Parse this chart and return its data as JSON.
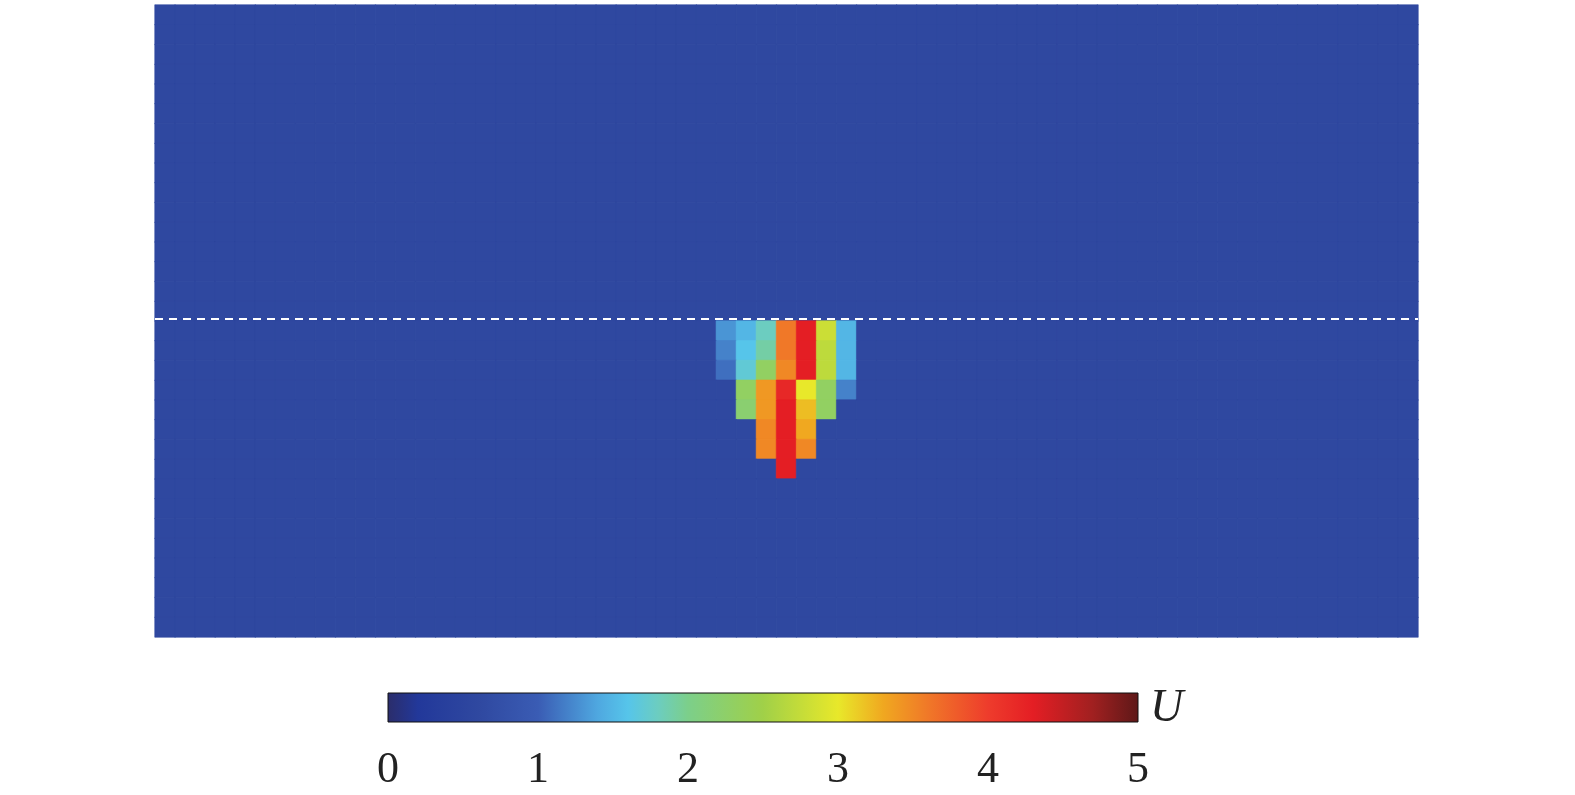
{
  "chart_data": {
    "type": "heatmap",
    "clabel": "U",
    "clim": [
      0,
      5
    ],
    "cticks": [
      0,
      1,
      2,
      3,
      4,
      5
    ],
    "categories": [
      null,
      null,
      null,
      null,
      null,
      null,
      null,
      null,
      null,
      null,
      null,
      null,
      null,
      null,
      null,
      null,
      null,
      null,
      null,
      null,
      null,
      null,
      null,
      null,
      null,
      null,
      null,
      null,
      null,
      null,
      null,
      null,
      null,
      null,
      null,
      null,
      null,
      null,
      null,
      null,
      null,
      null,
      null,
      null,
      null,
      null,
      null,
      null,
      null,
      null,
      null,
      null,
      null,
      null,
      null,
      null,
      null,
      null,
      null,
      null,
      null,
      null,
      null
    ],
    "y_categories": [
      null,
      null,
      null,
      null,
      null,
      null,
      null,
      null,
      null,
      null,
      null,
      null,
      null,
      null,
      null,
      null,
      null,
      null,
      null,
      null,
      null,
      null,
      null,
      null,
      null,
      null,
      null,
      null,
      null,
      null,
      null,
      null
    ],
    "cells": [
      [
        0.6,
        0.6,
        0.6,
        0.6,
        0.6,
        0.6,
        0.6,
        0.6,
        0.6,
        0.6,
        0.6,
        0.6,
        0.6,
        0.6,
        0.6,
        0.6,
        0.6,
        0.6,
        0.6,
        0.6,
        0.6,
        0.6,
        0.6,
        0.6,
        0.6,
        0.6,
        0.6,
        0.6,
        0.6,
        0.6,
        0.6,
        0.6,
        0.6,
        0.6,
        0.6,
        0.6,
        0.6,
        0.6,
        0.6,
        0.6,
        0.6,
        0.6,
        0.6,
        0.6,
        0.6,
        0.6,
        0.6,
        0.6,
        0.6,
        0.6,
        0.6,
        0.6,
        0.6,
        0.6,
        0.6,
        0.6,
        0.6,
        0.6,
        0.6,
        0.6,
        0.6,
        0.6,
        0.6
      ],
      [
        0.6,
        0.6,
        0.6,
        0.6,
        0.6,
        0.6,
        0.6,
        0.6,
        0.6,
        0.6,
        0.6,
        0.6,
        0.6,
        0.6,
        0.6,
        0.6,
        0.6,
        0.6,
        0.6,
        0.6,
        0.6,
        0.6,
        0.6,
        0.6,
        0.6,
        0.6,
        0.6,
        0.6,
        0.6,
        0.6,
        0.6,
        0.6,
        0.6,
        0.6,
        0.6,
        0.6,
        0.6,
        0.6,
        0.6,
        0.6,
        0.6,
        0.6,
        0.6,
        0.6,
        0.6,
        0.6,
        0.6,
        0.6,
        0.6,
        0.6,
        0.6,
        0.6,
        0.6,
        0.6,
        0.6,
        0.6,
        0.6,
        0.6,
        0.6,
        0.6,
        0.6,
        0.6,
        0.6
      ],
      [
        0.6,
        0.6,
        0.6,
        0.6,
        0.6,
        0.6,
        0.6,
        0.6,
        0.6,
        0.6,
        0.6,
        0.6,
        0.6,
        0.6,
        0.6,
        0.6,
        0.6,
        0.6,
        0.6,
        0.6,
        0.6,
        0.6,
        0.6,
        0.6,
        0.6,
        0.6,
        0.6,
        0.6,
        0.6,
        0.6,
        0.6,
        0.6,
        0.6,
        0.6,
        0.6,
        0.6,
        0.6,
        0.6,
        0.6,
        0.6,
        0.6,
        0.6,
        0.6,
        0.6,
        0.6,
        0.6,
        0.6,
        0.6,
        0.6,
        0.6,
        0.6,
        0.6,
        0.6,
        0.6,
        0.6,
        0.6,
        0.6,
        0.6,
        0.6,
        0.6,
        0.6,
        0.6,
        0.6
      ],
      [
        0.6,
        0.6,
        0.6,
        0.6,
        0.6,
        0.6,
        0.6,
        0.6,
        0.6,
        0.6,
        0.6,
        0.6,
        0.6,
        0.6,
        0.6,
        0.6,
        0.6,
        0.6,
        0.6,
        0.6,
        0.6,
        0.6,
        0.6,
        0.6,
        0.6,
        0.6,
        0.6,
        0.6,
        0.6,
        0.6,
        0.6,
        0.6,
        0.6,
        0.6,
        0.6,
        0.6,
        0.6,
        0.6,
        0.6,
        0.6,
        0.6,
        0.6,
        0.6,
        0.6,
        0.6,
        0.6,
        0.6,
        0.6,
        0.6,
        0.6,
        0.6,
        0.6,
        0.6,
        0.6,
        0.6,
        0.6,
        0.6,
        0.6,
        0.6,
        0.6,
        0.6,
        0.6,
        0.6
      ],
      [
        0.6,
        0.6,
        0.6,
        0.6,
        0.6,
        0.6,
        0.6,
        0.6,
        0.6,
        0.6,
        0.6,
        0.6,
        0.6,
        0.6,
        0.6,
        0.6,
        0.6,
        0.6,
        0.6,
        0.6,
        0.6,
        0.6,
        0.6,
        0.6,
        0.6,
        0.6,
        0.6,
        0.6,
        0.6,
        0.6,
        0.6,
        0.6,
        0.6,
        0.6,
        0.6,
        0.6,
        0.6,
        0.6,
        0.6,
        0.6,
        0.6,
        0.6,
        0.6,
        0.6,
        0.6,
        0.6,
        0.6,
        0.6,
        0.6,
        0.6,
        0.6,
        0.6,
        0.6,
        0.6,
        0.6,
        0.6,
        0.6,
        0.6,
        0.6,
        0.6,
        0.6,
        0.6,
        0.6
      ],
      [
        0.6,
        0.6,
        0.6,
        0.6,
        0.6,
        0.6,
        0.6,
        0.6,
        0.6,
        0.6,
        0.6,
        0.6,
        0.6,
        0.6,
        0.6,
        0.6,
        0.6,
        0.6,
        0.6,
        0.6,
        0.6,
        0.6,
        0.6,
        0.6,
        0.6,
        0.6,
        0.6,
        0.6,
        0.6,
        0.6,
        0.6,
        0.6,
        0.6,
        0.6,
        0.6,
        0.6,
        0.6,
        0.6,
        0.6,
        0.6,
        0.6,
        0.6,
        0.6,
        0.6,
        0.6,
        0.6,
        0.6,
        0.6,
        0.6,
        0.6,
        0.6,
        0.6,
        0.6,
        0.6,
        0.6,
        0.6,
        0.6,
        0.6,
        0.6,
        0.6,
        0.6,
        0.6,
        0.6
      ],
      [
        0.6,
        0.6,
        0.6,
        0.6,
        0.6,
        0.6,
        0.6,
        0.6,
        0.6,
        0.6,
        0.6,
        0.6,
        0.6,
        0.6,
        0.6,
        0.6,
        0.6,
        0.6,
        0.6,
        0.6,
        0.6,
        0.6,
        0.6,
        0.6,
        0.6,
        0.6,
        0.6,
        0.6,
        0.6,
        0.6,
        0.6,
        0.6,
        0.6,
        0.6,
        0.6,
        0.6,
        0.6,
        0.6,
        0.6,
        0.6,
        0.6,
        0.6,
        0.6,
        0.6,
        0.6,
        0.6,
        0.6,
        0.6,
        0.6,
        0.6,
        0.6,
        0.6,
        0.6,
        0.6,
        0.6,
        0.6,
        0.6,
        0.6,
        0.6,
        0.6,
        0.6,
        0.6,
        0.6
      ],
      [
        0.6,
        0.6,
        0.6,
        0.6,
        0.6,
        0.6,
        0.6,
        0.6,
        0.6,
        0.6,
        0.6,
        0.6,
        0.6,
        0.6,
        0.6,
        0.6,
        0.6,
        0.6,
        0.6,
        0.6,
        0.6,
        0.6,
        0.6,
        0.6,
        0.6,
        0.6,
        0.6,
        0.6,
        0.6,
        0.6,
        0.6,
        0.6,
        0.6,
        0.6,
        0.6,
        0.6,
        0.6,
        0.6,
        0.6,
        0.6,
        0.6,
        0.6,
        0.6,
        0.6,
        0.6,
        0.6,
        0.6,
        0.6,
        0.6,
        0.6,
        0.6,
        0.6,
        0.6,
        0.6,
        0.6,
        0.6,
        0.6,
        0.6,
        0.6,
        0.6,
        0.6,
        0.6,
        0.6
      ],
      [
        0.6,
        0.6,
        0.6,
        0.6,
        0.6,
        0.6,
        0.6,
        0.6,
        0.6,
        0.6,
        0.6,
        0.6,
        0.6,
        0.6,
        0.6,
        0.6,
        0.6,
        0.6,
        0.6,
        0.6,
        0.6,
        0.6,
        0.6,
        0.6,
        0.6,
        0.6,
        0.6,
        0.6,
        0.6,
        0.6,
        0.6,
        0.6,
        0.6,
        0.6,
        0.6,
        0.6,
        0.6,
        0.6,
        0.6,
        0.6,
        0.6,
        0.6,
        0.6,
        0.6,
        0.6,
        0.6,
        0.6,
        0.6,
        0.6,
        0.6,
        0.6,
        0.6,
        0.6,
        0.6,
        0.6,
        0.6,
        0.6,
        0.6,
        0.6,
        0.6,
        0.6,
        0.6,
        0.6
      ],
      [
        0.6,
        0.6,
        0.6,
        0.6,
        0.6,
        0.6,
        0.6,
        0.6,
        0.6,
        0.6,
        0.6,
        0.6,
        0.6,
        0.6,
        0.6,
        0.6,
        0.6,
        0.6,
        0.6,
        0.6,
        0.6,
        0.6,
        0.6,
        0.6,
        0.6,
        0.6,
        0.6,
        0.6,
        0.6,
        0.6,
        0.6,
        0.6,
        0.6,
        0.6,
        0.6,
        0.6,
        0.6,
        0.6,
        0.6,
        0.6,
        0.6,
        0.6,
        0.6,
        0.6,
        0.6,
        0.6,
        0.6,
        0.6,
        0.6,
        0.6,
        0.6,
        0.6,
        0.6,
        0.6,
        0.6,
        0.6,
        0.6,
        0.6,
        0.6,
        0.6,
        0.6,
        0.6,
        0.6
      ],
      [
        0.6,
        0.6,
        0.6,
        0.6,
        0.6,
        0.6,
        0.6,
        0.6,
        0.6,
        0.6,
        0.6,
        0.6,
        0.6,
        0.6,
        0.6,
        0.6,
        0.6,
        0.6,
        0.6,
        0.6,
        0.6,
        0.6,
        0.6,
        0.6,
        0.6,
        0.6,
        0.6,
        0.6,
        0.6,
        0.6,
        0.6,
        0.6,
        0.6,
        0.6,
        0.6,
        0.6,
        0.6,
        0.6,
        0.6,
        0.6,
        0.6,
        0.6,
        0.6,
        0.6,
        0.6,
        0.6,
        0.6,
        0.6,
        0.6,
        0.6,
        0.6,
        0.6,
        0.6,
        0.6,
        0.6,
        0.6,
        0.6,
        0.6,
        0.6,
        0.6,
        0.6,
        0.6,
        0.6
      ],
      [
        0.6,
        0.6,
        0.6,
        0.6,
        0.6,
        0.6,
        0.6,
        0.6,
        0.6,
        0.6,
        0.6,
        0.6,
        0.6,
        0.6,
        0.6,
        0.6,
        0.6,
        0.6,
        0.6,
        0.6,
        0.6,
        0.6,
        0.6,
        0.6,
        0.6,
        0.6,
        0.6,
        0.6,
        0.6,
        0.6,
        0.6,
        0.6,
        0.6,
        0.6,
        0.6,
        0.6,
        0.6,
        0.6,
        0.6,
        0.6,
        0.6,
        0.6,
        0.6,
        0.6,
        0.6,
        0.6,
        0.6,
        0.6,
        0.6,
        0.6,
        0.6,
        0.6,
        0.6,
        0.6,
        0.6,
        0.6,
        0.6,
        0.6,
        0.6,
        0.6,
        0.6,
        0.6,
        0.6
      ],
      [
        0.6,
        0.6,
        0.6,
        0.6,
        0.6,
        0.6,
        0.6,
        0.6,
        0.6,
        0.6,
        0.6,
        0.6,
        0.6,
        0.6,
        0.6,
        0.6,
        0.6,
        0.6,
        0.6,
        0.6,
        0.6,
        0.6,
        0.6,
        0.6,
        0.6,
        0.6,
        0.6,
        0.6,
        0.6,
        0.6,
        0.6,
        0.6,
        0.6,
        0.6,
        0.6,
        0.6,
        0.6,
        0.6,
        0.6,
        0.6,
        0.6,
        0.6,
        0.6,
        0.6,
        0.6,
        0.6,
        0.6,
        0.6,
        0.6,
        0.6,
        0.6,
        0.6,
        0.6,
        0.6,
        0.6,
        0.6,
        0.6,
        0.6,
        0.6,
        0.6,
        0.6,
        0.6,
        0.6
      ],
      [
        0.6,
        0.6,
        0.6,
        0.6,
        0.6,
        0.6,
        0.6,
        0.6,
        0.6,
        0.6,
        0.6,
        0.6,
        0.6,
        0.6,
        0.6,
        0.6,
        0.6,
        0.6,
        0.6,
        0.6,
        0.6,
        0.6,
        0.6,
        0.6,
        0.6,
        0.6,
        0.6,
        0.6,
        0.6,
        0.6,
        0.6,
        0.6,
        0.6,
        0.6,
        0.6,
        0.6,
        0.6,
        0.6,
        0.6,
        0.6,
        0.6,
        0.6,
        0.6,
        0.6,
        0.6,
        0.6,
        0.6,
        0.6,
        0.6,
        0.6,
        0.6,
        0.6,
        0.6,
        0.6,
        0.6,
        0.6,
        0.6,
        0.6,
        0.6,
        0.6,
        0.6,
        0.6,
        0.6
      ],
      [
        0.6,
        0.6,
        0.6,
        0.6,
        0.6,
        0.6,
        0.6,
        0.6,
        0.6,
        0.6,
        0.6,
        0.6,
        0.6,
        0.6,
        0.6,
        0.6,
        0.6,
        0.6,
        0.6,
        0.6,
        0.6,
        0.6,
        0.6,
        0.6,
        0.6,
        0.6,
        0.6,
        0.6,
        0.6,
        0.6,
        0.6,
        0.6,
        0.6,
        0.6,
        0.6,
        0.6,
        0.6,
        0.6,
        0.6,
        0.6,
        0.6,
        0.6,
        0.6,
        0.6,
        0.6,
        0.6,
        0.6,
        0.6,
        0.6,
        0.6,
        0.6,
        0.6,
        0.6,
        0.6,
        0.6,
        0.6,
        0.6,
        0.6,
        0.6,
        0.6,
        0.6,
        0.6,
        0.6
      ],
      [
        0.6,
        0.6,
        0.6,
        0.6,
        0.6,
        0.6,
        0.6,
        0.6,
        0.6,
        0.6,
        0.6,
        0.6,
        0.6,
        0.6,
        0.6,
        0.6,
        0.6,
        0.6,
        0.6,
        0.6,
        0.6,
        0.6,
        0.6,
        0.6,
        0.6,
        0.6,
        0.6,
        0.6,
        0.6,
        0.6,
        0.6,
        0.6,
        0.6,
        0.6,
        0.6,
        0.6,
        0.6,
        0.6,
        0.6,
        0.6,
        0.6,
        0.6,
        0.6,
        0.6,
        0.6,
        0.6,
        0.6,
        0.6,
        0.6,
        0.6,
        0.6,
        0.6,
        0.6,
        0.6,
        0.6,
        0.6,
        0.6,
        0.6,
        0.6,
        0.6,
        0.6,
        0.6,
        0.6
      ],
      [
        0.6,
        0.6,
        0.6,
        0.6,
        0.6,
        0.6,
        0.6,
        0.6,
        0.6,
        0.6,
        0.6,
        0.6,
        0.6,
        0.6,
        0.6,
        0.6,
        0.6,
        0.6,
        0.6,
        0.6,
        0.6,
        0.6,
        0.6,
        0.6,
        0.6,
        0.6,
        0.6,
        0.6,
        1.3,
        1.5,
        1.8,
        3.6,
        4.3,
        2.8,
        1.5,
        0.6,
        0.6,
        0.6,
        0.6,
        0.6,
        0.6,
        0.6,
        0.6,
        0.6,
        0.6,
        0.6,
        0.6,
        0.6,
        0.6,
        0.6,
        0.6,
        0.6,
        0.6,
        0.6,
        0.6,
        0.6,
        0.6,
        0.6,
        0.6,
        0.6,
        0.6,
        0.6,
        0.6
      ],
      [
        0.6,
        0.6,
        0.6,
        0.6,
        0.6,
        0.6,
        0.6,
        0.6,
        0.6,
        0.6,
        0.6,
        0.6,
        0.6,
        0.6,
        0.6,
        0.6,
        0.6,
        0.6,
        0.6,
        0.6,
        0.6,
        0.6,
        0.6,
        0.6,
        0.6,
        0.6,
        0.6,
        0.6,
        1.2,
        1.6,
        1.9,
        3.6,
        4.3,
        2.7,
        1.5,
        0.6,
        0.6,
        0.6,
        0.6,
        0.6,
        0.6,
        0.6,
        0.6,
        0.6,
        0.6,
        0.6,
        0.6,
        0.6,
        0.6,
        0.6,
        0.6,
        0.6,
        0.6,
        0.6,
        0.6,
        0.6,
        0.6,
        0.6,
        0.6,
        0.6,
        0.6,
        0.6,
        0.6
      ],
      [
        0.6,
        0.6,
        0.6,
        0.6,
        0.6,
        0.6,
        0.6,
        0.6,
        0.6,
        0.6,
        0.6,
        0.6,
        0.6,
        0.6,
        0.6,
        0.6,
        0.6,
        0.6,
        0.6,
        0.6,
        0.6,
        0.6,
        0.6,
        0.6,
        0.6,
        0.6,
        0.6,
        0.6,
        1.1,
        1.7,
        2.3,
        3.5,
        4.3,
        2.7,
        1.5,
        0.6,
        0.6,
        0.6,
        0.6,
        0.6,
        0.6,
        0.6,
        0.6,
        0.6,
        0.6,
        0.6,
        0.6,
        0.6,
        0.6,
        0.6,
        0.6,
        0.6,
        0.6,
        0.6,
        0.6,
        0.6,
        0.6,
        0.6,
        0.6,
        0.6,
        0.6,
        0.6,
        0.6
      ],
      [
        0.6,
        0.6,
        0.6,
        0.6,
        0.6,
        0.6,
        0.6,
        0.6,
        0.6,
        0.6,
        0.6,
        0.6,
        0.6,
        0.6,
        0.6,
        0.6,
        0.6,
        0.6,
        0.6,
        0.6,
        0.6,
        0.6,
        0.6,
        0.6,
        0.6,
        0.6,
        0.6,
        0.6,
        0.6,
        2.3,
        3.4,
        4.2,
        3.0,
        2.3,
        1.2,
        0.6,
        0.6,
        0.6,
        0.6,
        0.6,
        0.6,
        0.6,
        0.6,
        0.6,
        0.6,
        0.6,
        0.6,
        0.6,
        0.6,
        0.6,
        0.6,
        0.6,
        0.6,
        0.6,
        0.6,
        0.6,
        0.6,
        0.6,
        0.6,
        0.6,
        0.6,
        0.6,
        0.6
      ],
      [
        0.6,
        0.6,
        0.6,
        0.6,
        0.6,
        0.6,
        0.6,
        0.6,
        0.6,
        0.6,
        0.6,
        0.6,
        0.6,
        0.6,
        0.6,
        0.6,
        0.6,
        0.6,
        0.6,
        0.6,
        0.6,
        0.6,
        0.6,
        0.6,
        0.6,
        0.6,
        0.6,
        0.6,
        0.6,
        2.2,
        3.4,
        4.3,
        3.2,
        2.3,
        0.6,
        0.6,
        0.6,
        0.6,
        0.6,
        0.6,
        0.6,
        0.6,
        0.6,
        0.6,
        0.6,
        0.6,
        0.6,
        0.6,
        0.6,
        0.6,
        0.6,
        0.6,
        0.6,
        0.6,
        0.6,
        0.6,
        0.6,
        0.6,
        0.6,
        0.6,
        0.6,
        0.6,
        0.6
      ],
      [
        0.6,
        0.6,
        0.6,
        0.6,
        0.6,
        0.6,
        0.6,
        0.6,
        0.6,
        0.6,
        0.6,
        0.6,
        0.6,
        0.6,
        0.6,
        0.6,
        0.6,
        0.6,
        0.6,
        0.6,
        0.6,
        0.6,
        0.6,
        0.6,
        0.6,
        0.6,
        0.6,
        0.6,
        0.6,
        0.6,
        3.5,
        4.3,
        3.3,
        0.6,
        0.6,
        0.6,
        0.6,
        0.6,
        0.6,
        0.6,
        0.6,
        0.6,
        0.6,
        0.6,
        0.6,
        0.6,
        0.6,
        0.6,
        0.6,
        0.6,
        0.6,
        0.6,
        0.6,
        0.6,
        0.6,
        0.6,
        0.6,
        0.6,
        0.6,
        0.6,
        0.6,
        0.6,
        0.6
      ],
      [
        0.6,
        0.6,
        0.6,
        0.6,
        0.6,
        0.6,
        0.6,
        0.6,
        0.6,
        0.6,
        0.6,
        0.6,
        0.6,
        0.6,
        0.6,
        0.6,
        0.6,
        0.6,
        0.6,
        0.6,
        0.6,
        0.6,
        0.6,
        0.6,
        0.6,
        0.6,
        0.6,
        0.6,
        0.6,
        0.6,
        3.5,
        4.3,
        3.5,
        0.6,
        0.6,
        0.6,
        0.6,
        0.6,
        0.6,
        0.6,
        0.6,
        0.6,
        0.6,
        0.6,
        0.6,
        0.6,
        0.6,
        0.6,
        0.6,
        0.6,
        0.6,
        0.6,
        0.6,
        0.6,
        0.6,
        0.6,
        0.6,
        0.6,
        0.6,
        0.6,
        0.6,
        0.6,
        0.6
      ],
      [
        0.6,
        0.6,
        0.6,
        0.6,
        0.6,
        0.6,
        0.6,
        0.6,
        0.6,
        0.6,
        0.6,
        0.6,
        0.6,
        0.6,
        0.6,
        0.6,
        0.6,
        0.6,
        0.6,
        0.6,
        0.6,
        0.6,
        0.6,
        0.6,
        0.6,
        0.6,
        0.6,
        0.6,
        0.6,
        0.6,
        0.6,
        4.3,
        0.6,
        0.6,
        0.6,
        0.6,
        0.6,
        0.6,
        0.6,
        0.6,
        0.6,
        0.6,
        0.6,
        0.6,
        0.6,
        0.6,
        0.6,
        0.6,
        0.6,
        0.6,
        0.6,
        0.6,
        0.6,
        0.6,
        0.6,
        0.6,
        0.6,
        0.6,
        0.6,
        0.6,
        0.6,
        0.6,
        0.6
      ],
      [
        0.6,
        0.6,
        0.6,
        0.6,
        0.6,
        0.6,
        0.6,
        0.6,
        0.6,
        0.6,
        0.6,
        0.6,
        0.6,
        0.6,
        0.6,
        0.6,
        0.6,
        0.6,
        0.6,
        0.6,
        0.6,
        0.6,
        0.6,
        0.6,
        0.6,
        0.6,
        0.6,
        0.6,
        0.6,
        0.6,
        0.6,
        0.6,
        0.6,
        0.6,
        0.6,
        0.6,
        0.6,
        0.6,
        0.6,
        0.6,
        0.6,
        0.6,
        0.6,
        0.6,
        0.6,
        0.6,
        0.6,
        0.6,
        0.6,
        0.6,
        0.6,
        0.6,
        0.6,
        0.6,
        0.6,
        0.6,
        0.6,
        0.6,
        0.6,
        0.6,
        0.6,
        0.6,
        0.6
      ],
      [
        0.6,
        0.6,
        0.6,
        0.6,
        0.6,
        0.6,
        0.6,
        0.6,
        0.6,
        0.6,
        0.6,
        0.6,
        0.6,
        0.6,
        0.6,
        0.6,
        0.6,
        0.6,
        0.6,
        0.6,
        0.6,
        0.6,
        0.6,
        0.6,
        0.6,
        0.6,
        0.6,
        0.6,
        0.6,
        0.6,
        0.6,
        0.6,
        0.6,
        0.6,
        0.6,
        0.6,
        0.6,
        0.6,
        0.6,
        0.6,
        0.6,
        0.6,
        0.6,
        0.6,
        0.6,
        0.6,
        0.6,
        0.6,
        0.6,
        0.6,
        0.6,
        0.6,
        0.6,
        0.6,
        0.6,
        0.6,
        0.6,
        0.6,
        0.6,
        0.6,
        0.6,
        0.6,
        0.6
      ],
      [
        0.6,
        0.6,
        0.6,
        0.6,
        0.6,
        0.6,
        0.6,
        0.6,
        0.6,
        0.6,
        0.6,
        0.6,
        0.6,
        0.6,
        0.6,
        0.6,
        0.6,
        0.6,
        0.6,
        0.6,
        0.6,
        0.6,
        0.6,
        0.6,
        0.6,
        0.6,
        0.6,
        0.6,
        0.6,
        0.6,
        0.6,
        0.6,
        0.6,
        0.6,
        0.6,
        0.6,
        0.6,
        0.6,
        0.6,
        0.6,
        0.6,
        0.6,
        0.6,
        0.6,
        0.6,
        0.6,
        0.6,
        0.6,
        0.6,
        0.6,
        0.6,
        0.6,
        0.6,
        0.6,
        0.6,
        0.6,
        0.6,
        0.6,
        0.6,
        0.6,
        0.6,
        0.6,
        0.6
      ],
      [
        0.6,
        0.6,
        0.6,
        0.6,
        0.6,
        0.6,
        0.6,
        0.6,
        0.6,
        0.6,
        0.6,
        0.6,
        0.6,
        0.6,
        0.6,
        0.6,
        0.6,
        0.6,
        0.6,
        0.6,
        0.6,
        0.6,
        0.6,
        0.6,
        0.6,
        0.6,
        0.6,
        0.6,
        0.6,
        0.6,
        0.6,
        0.6,
        0.6,
        0.6,
        0.6,
        0.6,
        0.6,
        0.6,
        0.6,
        0.6,
        0.6,
        0.6,
        0.6,
        0.6,
        0.6,
        0.6,
        0.6,
        0.6,
        0.6,
        0.6,
        0.6,
        0.6,
        0.6,
        0.6,
        0.6,
        0.6,
        0.6,
        0.6,
        0.6,
        0.6,
        0.6,
        0.6,
        0.6
      ],
      [
        0.6,
        0.6,
        0.6,
        0.6,
        0.6,
        0.6,
        0.6,
        0.6,
        0.6,
        0.6,
        0.6,
        0.6,
        0.6,
        0.6,
        0.6,
        0.6,
        0.6,
        0.6,
        0.6,
        0.6,
        0.6,
        0.6,
        0.6,
        0.6,
        0.6,
        0.6,
        0.6,
        0.6,
        0.6,
        0.6,
        0.6,
        0.6,
        0.6,
        0.6,
        0.6,
        0.6,
        0.6,
        0.6,
        0.6,
        0.6,
        0.6,
        0.6,
        0.6,
        0.6,
        0.6,
        0.6,
        0.6,
        0.6,
        0.6,
        0.6,
        0.6,
        0.6,
        0.6,
        0.6,
        0.6,
        0.6,
        0.6,
        0.6,
        0.6,
        0.6,
        0.6,
        0.6,
        0.6
      ],
      [
        0.6,
        0.6,
        0.6,
        0.6,
        0.6,
        0.6,
        0.6,
        0.6,
        0.6,
        0.6,
        0.6,
        0.6,
        0.6,
        0.6,
        0.6,
        0.6,
        0.6,
        0.6,
        0.6,
        0.6,
        0.6,
        0.6,
        0.6,
        0.6,
        0.6,
        0.6,
        0.6,
        0.6,
        0.6,
        0.6,
        0.6,
        0.6,
        0.6,
        0.6,
        0.6,
        0.6,
        0.6,
        0.6,
        0.6,
        0.6,
        0.6,
        0.6,
        0.6,
        0.6,
        0.6,
        0.6,
        0.6,
        0.6,
        0.6,
        0.6,
        0.6,
        0.6,
        0.6,
        0.6,
        0.6,
        0.6,
        0.6,
        0.6,
        0.6,
        0.6,
        0.6,
        0.6,
        0.6
      ],
      [
        0.6,
        0.6,
        0.6,
        0.6,
        0.6,
        0.6,
        0.6,
        0.6,
        0.6,
        0.6,
        0.6,
        0.6,
        0.6,
        0.6,
        0.6,
        0.6,
        0.6,
        0.6,
        0.6,
        0.6,
        0.6,
        0.6,
        0.6,
        0.6,
        0.6,
        0.6,
        0.6,
        0.6,
        0.6,
        0.6,
        0.6,
        0.6,
        0.6,
        0.6,
        0.6,
        0.6,
        0.6,
        0.6,
        0.6,
        0.6,
        0.6,
        0.6,
        0.6,
        0.6,
        0.6,
        0.6,
        0.6,
        0.6,
        0.6,
        0.6,
        0.6,
        0.6,
        0.6,
        0.6,
        0.6,
        0.6,
        0.6,
        0.6,
        0.6,
        0.6,
        0.6,
        0.6,
        0.6
      ],
      [
        0.6,
        0.6,
        0.6,
        0.6,
        0.6,
        0.6,
        0.6,
        0.6,
        0.6,
        0.6,
        0.6,
        0.6,
        0.6,
        0.6,
        0.6,
        0.6,
        0.6,
        0.6,
        0.6,
        0.6,
        0.6,
        0.6,
        0.6,
        0.6,
        0.6,
        0.6,
        0.6,
        0.6,
        0.6,
        0.6,
        0.6,
        0.6,
        0.6,
        0.6,
        0.6,
        0.6,
        0.6,
        0.6,
        0.6,
        0.6,
        0.6,
        0.6,
        0.6,
        0.6,
        0.6,
        0.6,
        0.6,
        0.6,
        0.6,
        0.6,
        0.6,
        0.6,
        0.6,
        0.6,
        0.6,
        0.6,
        0.6,
        0.6,
        0.6,
        0.6,
        0.6,
        0.6,
        0.6
      ]
    ]
  }
}
